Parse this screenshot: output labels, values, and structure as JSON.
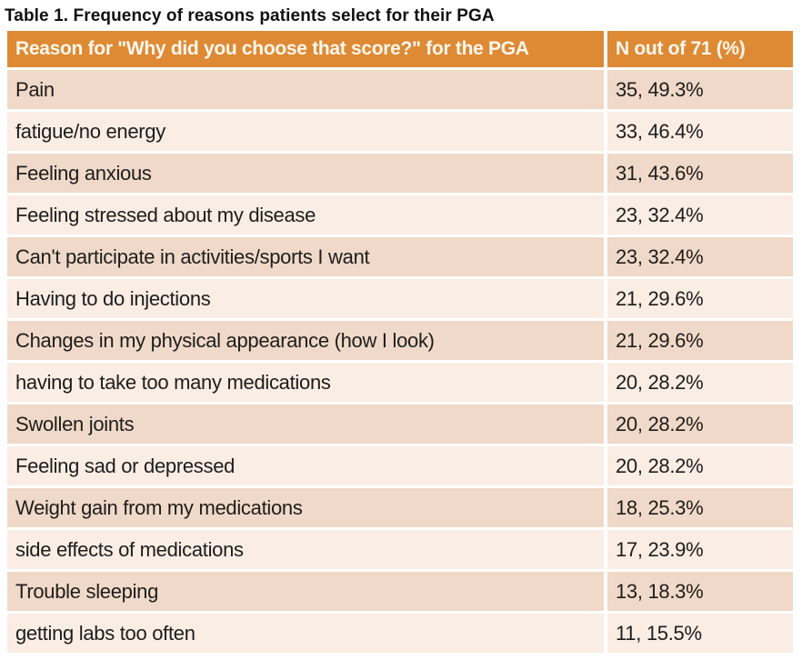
{
  "title": "Table 1. Frequency of reasons patients select for their PGA",
  "table": {
    "headers": [
      "Reason for \"Why did you choose that score?\" for the PGA",
      "N out of 71 (%)"
    ],
    "rows": [
      {
        "reason": "Pain",
        "value": "35, 49.3%"
      },
      {
        "reason": "fatigue/no energy",
        "value": "33, 46.4%"
      },
      {
        "reason": "Feeling anxious",
        "value": "31, 43.6%"
      },
      {
        "reason": "Feeling stressed about my disease",
        "value": "23, 32.4%"
      },
      {
        "reason": "Can't participate in activities/sports I want",
        "value": "23, 32.4%"
      },
      {
        "reason": "Having to do injections",
        "value": "21, 29.6%"
      },
      {
        "reason": "Changes in my physical appearance (how I look)",
        "value": "21, 29.6%"
      },
      {
        "reason": "having to take too many medications",
        "value": "20, 28.2%"
      },
      {
        "reason": "Swollen joints",
        "value": "20, 28.2%"
      },
      {
        "reason": "Feeling sad or depressed",
        "value": "20, 28.2%"
      },
      {
        "reason": "Weight gain from my medications",
        "value": "18, 25.3%"
      },
      {
        "reason": "side effects of medications",
        "value": "17, 23.9%"
      },
      {
        "reason": "Trouble sleeping",
        "value": "13, 18.3%"
      },
      {
        "reason": "getting labs too often",
        "value": "11, 15.5%"
      }
    ]
  },
  "chart_data": {
    "type": "table",
    "title": "Table 1. Frequency of reasons patients select for their PGA",
    "columns": [
      "Reason for \"Why did you choose that score?\" for the PGA",
      "N out of 71 (%)"
    ],
    "n_total": 71,
    "rows": [
      {
        "reason": "Pain",
        "n": 35,
        "pct": 49.3
      },
      {
        "reason": "fatigue/no energy",
        "n": 33,
        "pct": 46.4
      },
      {
        "reason": "Feeling anxious",
        "n": 31,
        "pct": 43.6
      },
      {
        "reason": "Feeling stressed about my disease",
        "n": 23,
        "pct": 32.4
      },
      {
        "reason": "Can't participate in activities/sports I want",
        "n": 23,
        "pct": 32.4
      },
      {
        "reason": "Having to do injections",
        "n": 21,
        "pct": 29.6
      },
      {
        "reason": "Changes in my physical appearance (how I look)",
        "n": 21,
        "pct": 29.6
      },
      {
        "reason": "having to take too many medications",
        "n": 20,
        "pct": 28.2
      },
      {
        "reason": "Swollen joints",
        "n": 20,
        "pct": 28.2
      },
      {
        "reason": "Feeling sad or depressed",
        "n": 20,
        "pct": 28.2
      },
      {
        "reason": "Weight gain from my medications",
        "n": 18,
        "pct": 25.3
      },
      {
        "reason": "side effects of medications",
        "n": 17,
        "pct": 23.9
      },
      {
        "reason": "Trouble sleeping",
        "n": 13,
        "pct": 18.3
      },
      {
        "reason": "getting labs too often",
        "n": 11,
        "pct": 15.5
      }
    ]
  },
  "colors": {
    "header_bg": "#DE8A35",
    "header_text": "#FDF8EE",
    "row_dark": "#F0D9C8",
    "row_light": "#F9EDE4",
    "body_text": "#1D1D1D",
    "title_text": "#111111"
  }
}
